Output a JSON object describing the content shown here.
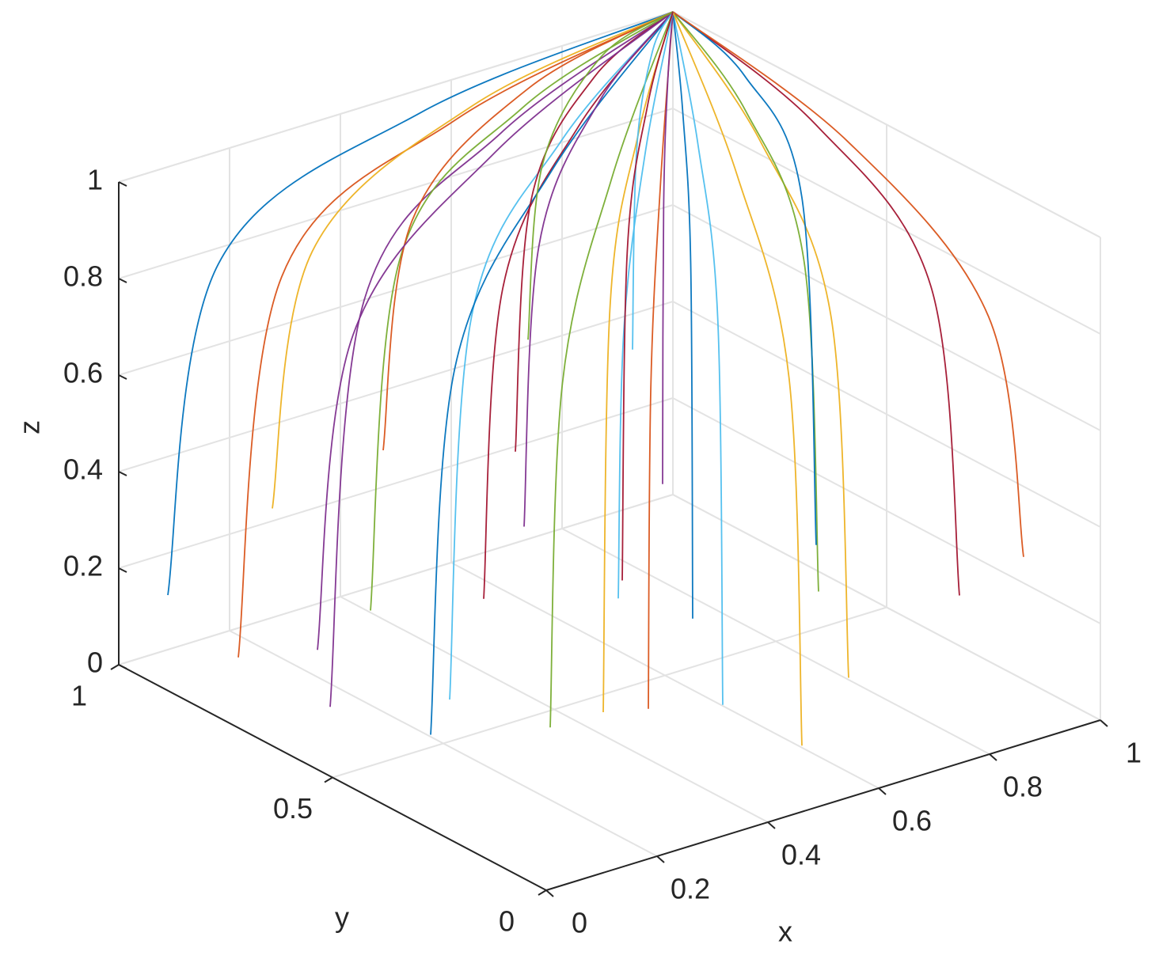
{
  "chart_data": {
    "type": "line3d",
    "xlabel": "x",
    "ylabel": "y",
    "zlabel": "z",
    "xlim": [
      0,
      1
    ],
    "ylim": [
      0,
      1
    ],
    "zlim": [
      0,
      1
    ],
    "xticks": [
      0,
      0.2,
      0.4,
      0.6,
      0.8,
      1
    ],
    "yticks": [
      0,
      0.5,
      1
    ],
    "zticks": [
      0,
      0.2,
      0.4,
      0.6,
      0.8,
      1
    ],
    "grid": true,
    "color_order": [
      "#0072bd",
      "#d95319",
      "#edb120",
      "#7e2f8e",
      "#77ac30",
      "#4dbeee",
      "#a2142f"
    ],
    "series": [
      {
        "x": [
          0.05,
          0.145,
          0.525,
          1
        ],
        "y": [
          0.95,
          0.955,
          0.975,
          1
        ],
        "z": [
          0.15,
          0.8,
          0.97,
          1
        ]
      },
      {
        "x": [
          0.1,
          0.19,
          0.55,
          1
        ],
        "y": [
          0.85,
          0.865,
          0.925,
          1
        ],
        "z": [
          0.05,
          0.8,
          0.97,
          1
        ]
      },
      {
        "x": [
          0.2,
          0.28,
          0.6,
          1
        ],
        "y": [
          0.9,
          0.91,
          0.95,
          1
        ],
        "z": [
          0.3,
          0.8,
          0.97,
          1
        ]
      },
      {
        "x": [
          0.15,
          0.235,
          0.575,
          1
        ],
        "y": [
          0.7,
          0.73,
          0.85,
          1
        ],
        "z": [
          0.0,
          0.8,
          0.97,
          1
        ]
      },
      {
        "x": [
          0.3,
          0.37,
          0.65,
          1
        ],
        "y": [
          0.8,
          0.82,
          0.9,
          1
        ],
        "z": [
          0.1,
          0.8,
          0.97,
          1
        ]
      },
      {
        "x": [
          0.25,
          0.325,
          0.625,
          1
        ],
        "y": [
          0.55,
          0.595,
          0.775,
          1
        ],
        "z": [
          0.05,
          0.8,
          0.97,
          1
        ]
      },
      {
        "x": [
          0.35,
          0.415,
          0.675,
          1
        ],
        "y": [
          0.6,
          0.64,
          0.8,
          1
        ],
        "z": [
          0.2,
          0.8,
          0.97,
          1
        ]
      },
      {
        "x": [
          0.1,
          0.19,
          0.55,
          1
        ],
        "y": [
          0.4,
          0.46,
          0.7,
          1
        ],
        "z": [
          0.1,
          0.8,
          0.97,
          1
        ]
      },
      {
        "x": [
          0.4,
          0.46,
          0.7,
          1
        ],
        "y": [
          0.9,
          0.91,
          0.95,
          1
        ],
        "z": [
          0.35,
          0.8,
          0.97,
          1
        ]
      },
      {
        "x": [
          0.45,
          0.505,
          0.725,
          1
        ],
        "y": [
          0.45,
          0.505,
          0.725,
          1
        ],
        "z": [
          0.0,
          0.8,
          0.97,
          1
        ]
      },
      {
        "x": [
          0.5,
          0.55,
          0.75,
          1
        ],
        "y": [
          0.7,
          0.73,
          0.85,
          1
        ],
        "z": [
          0.25,
          0.8,
          0.97,
          1
        ]
      },
      {
        "x": [
          0.2,
          0.28,
          0.6,
          1
        ],
        "y": [
          0.25,
          0.325,
          0.625,
          1
        ],
        "z": [
          0.15,
          0.8,
          0.97,
          1
        ]
      },
      {
        "x": [
          0.55,
          0.595,
          0.775,
          1
        ],
        "y": [
          0.3,
          0.37,
          0.65,
          1
        ],
        "z": [
          0.05,
          0.8,
          0.97,
          1
        ]
      },
      {
        "x": [
          0.6,
          0.64,
          0.8,
          1
        ],
        "y": [
          0.85,
          0.865,
          0.925,
          1
        ],
        "z": [
          0.3,
          0.8,
          0.97,
          1
        ]
      },
      {
        "x": [
          0.65,
          0.685,
          0.825,
          1
        ],
        "y": [
          0.5,
          0.55,
          0.75,
          1
        ],
        "z": [
          0.1,
          0.8,
          0.97,
          1
        ]
      },
      {
        "x": [
          0.3,
          0.37,
          0.65,
          1
        ],
        "y": [
          0.15,
          0.235,
          0.575,
          1
        ],
        "z": [
          0.2,
          0.8,
          0.97,
          1
        ]
      },
      {
        "x": [
          0.7,
          0.73,
          0.85,
          1
        ],
        "y": [
          0.2,
          0.28,
          0.6,
          1
        ],
        "z": [
          0.1,
          0.8,
          0.97,
          1
        ]
      },
      {
        "x": [
          0.75,
          0.775,
          0.875,
          1
        ],
        "y": [
          0.7,
          0.73,
          0.85,
          1
        ],
        "z": [
          0.25,
          0.8,
          0.97,
          1
        ]
      },
      {
        "x": [
          0.8,
          0.82,
          0.9,
          1
        ],
        "y": [
          0.4,
          0.46,
          0.7,
          1
        ],
        "z": [
          0.15,
          0.8,
          0.97,
          1
        ]
      },
      {
        "x": [
          0.85,
          0.865,
          0.925,
          1
        ],
        "y": [
          0.9,
          0.91,
          0.95,
          1
        ],
        "z": [
          0.4,
          0.8,
          0.97,
          1
        ]
      },
      {
        "x": [
          0.9,
          0.91,
          0.95,
          1
        ],
        "y": [
          0.2,
          0.28,
          0.6,
          1
        ],
        "z": [
          0.2,
          0.8,
          0.97,
          1
        ]
      },
      {
        "x": [
          0.95,
          0.955,
          0.975,
          1
        ],
        "y": [
          0.6,
          0.64,
          0.8,
          1
        ],
        "z": [
          0.1,
          0.8,
          0.97,
          1
        ]
      },
      {
        "x": [
          0.9,
          0.91,
          0.95,
          1
        ],
        "y": [
          0.05,
          0.145,
          0.525,
          1
        ],
        "z": [
          0.35,
          0.8,
          0.97,
          1
        ]
      },
      {
        "x": [
          0.5,
          0.55,
          0.75,
          1
        ],
        "y": [
          0.05,
          0.145,
          0.525,
          1
        ],
        "z": [
          0.1,
          0.8,
          0.97,
          1
        ]
      },
      {
        "x": [
          0.05,
          0.145,
          0.525,
          1
        ],
        "y": [
          0.6,
          0.64,
          0.8,
          1
        ],
        "z": [
          0.2,
          0.8,
          0.97,
          1
        ]
      },
      {
        "x": [
          0.7,
          0.73,
          0.85,
          1
        ],
        "y": [
          0.95,
          0.955,
          0.975,
          1
        ],
        "z": [
          0.45,
          0.8,
          0.97,
          1
        ]
      },
      {
        "x": [
          0.4,
          0.46,
          0.7,
          1
        ],
        "y": [
          0.35,
          0.415,
          0.675,
          1
        ],
        "z": [
          0.3,
          0.8,
          0.97,
          1
        ]
      },
      {
        "x": [
          0.6,
          0.64,
          0.8,
          1
        ],
        "y": [
          0.6,
          0.64,
          0.8,
          1
        ],
        "z": [
          0.15,
          0.8,
          0.97,
          1
        ]
      }
    ]
  }
}
